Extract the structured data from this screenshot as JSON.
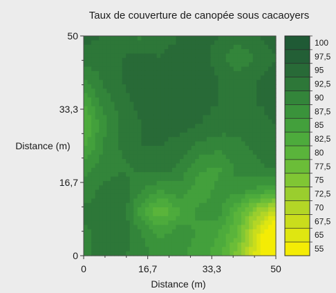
{
  "chart_data": {
    "type": "heatmap",
    "title": "Taux de couverture de canopée sous cacaoyers",
    "xlabel": "Distance (m)",
    "ylabel": "Distance (m)",
    "xlim": [
      0,
      50
    ],
    "ylim": [
      0,
      50
    ],
    "x_ticks": [
      "0",
      "16,7",
      "33,3",
      "50"
    ],
    "y_ticks": [
      "0",
      "16,7",
      "33,3",
      "50"
    ],
    "legend_placement": "right",
    "color_scale": [
      {
        "label": "100",
        "color": "#1f5a35"
      },
      {
        "label": "97,5",
        "color": "#235f36"
      },
      {
        "label": "95",
        "color": "#286a37"
      },
      {
        "label": "92,5",
        "color": "#2d7738"
      },
      {
        "label": "90",
        "color": "#33853a"
      },
      {
        "label": "87,5",
        "color": "#3a933b"
      },
      {
        "label": "85",
        "color": "#43a03c"
      },
      {
        "label": "82,5",
        "color": "#4dab3c"
      },
      {
        "label": "80",
        "color": "#5ab43b"
      },
      {
        "label": "77,5",
        "color": "#6bbd38"
      },
      {
        "label": "75",
        "color": "#80c634"
      },
      {
        "label": "72,5",
        "color": "#9ace2e"
      },
      {
        "label": "70",
        "color": "#b3d626"
      },
      {
        "label": "67,5",
        "color": "#cadd1c"
      },
      {
        "label": "65",
        "color": "#dfe611"
      },
      {
        "label": "55",
        "color": "#f4ec05"
      }
    ],
    "x": [
      0,
      5,
      10,
      15,
      20,
      25,
      30,
      35,
      40,
      45,
      50
    ],
    "y": [
      50,
      45,
      40,
      35,
      30,
      25,
      20,
      15,
      10,
      5,
      0
    ],
    "values": [
      [
        96,
        95,
        93,
        92,
        94,
        95,
        96,
        95,
        94,
        95,
        96
      ],
      [
        94,
        93,
        95,
        96,
        95,
        96,
        96,
        94,
        90,
        93,
        95
      ],
      [
        90,
        93,
        95,
        97,
        96,
        97,
        97,
        95,
        94,
        95,
        96
      ],
      [
        85,
        91,
        94,
        96,
        97,
        97,
        96,
        95,
        95,
        95,
        96
      ],
      [
        82,
        89,
        93,
        95,
        96,
        96,
        95,
        94,
        93,
        94,
        95
      ],
      [
        84,
        90,
        93,
        95,
        95,
        94,
        92,
        91,
        92,
        93,
        94
      ],
      [
        89,
        91,
        92,
        93,
        94,
        92,
        88,
        87,
        91,
        92,
        93
      ],
      [
        91,
        93,
        94,
        90,
        88,
        89,
        86,
        88,
        89,
        87,
        86
      ],
      [
        93,
        94,
        95,
        86,
        80,
        85,
        88,
        89,
        82,
        74,
        68
      ],
      [
        92,
        93,
        94,
        90,
        87,
        89,
        87,
        85,
        80,
        68,
        58
      ],
      [
        92,
        93,
        93,
        91,
        89,
        88,
        86,
        84,
        76,
        66,
        62
      ]
    ]
  }
}
